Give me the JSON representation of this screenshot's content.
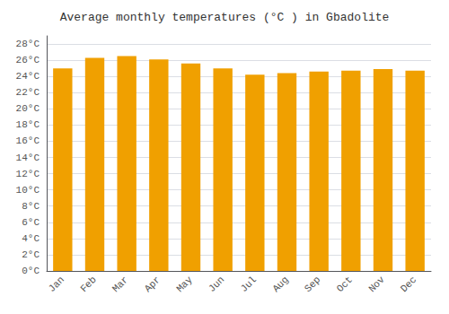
{
  "chart_data": {
    "type": "bar",
    "title": "Average monthly temperatures (°C ) in Gbadolite",
    "categories": [
      "Jan",
      "Feb",
      "Mar",
      "Apr",
      "May",
      "Jun",
      "Jul",
      "Aug",
      "Sep",
      "Oct",
      "Nov",
      "Dec"
    ],
    "values": [
      25.0,
      26.3,
      26.5,
      26.1,
      25.6,
      25.0,
      24.2,
      24.4,
      24.6,
      24.7,
      24.9,
      24.7
    ],
    "color": "#F0A000",
    "ylim": [
      0,
      29
    ],
    "yticks": [
      {
        "value": 0,
        "label": "0°C"
      },
      {
        "value": 2,
        "label": "2°C"
      },
      {
        "value": 4,
        "label": "4°C"
      },
      {
        "value": 6,
        "label": "6°C"
      },
      {
        "value": 8,
        "label": "8°C"
      },
      {
        "value": 10,
        "label": "10°C"
      },
      {
        "value": 12,
        "label": "12°C"
      },
      {
        "value": 14,
        "label": "14°C"
      },
      {
        "value": 16,
        "label": "16°C"
      },
      {
        "value": 18,
        "label": "18°C"
      },
      {
        "value": 20,
        "label": "20°C"
      },
      {
        "value": 22,
        "label": "22°C"
      },
      {
        "value": 24,
        "label": "24°C"
      },
      {
        "value": 26,
        "label": "26°C"
      },
      {
        "value": 28,
        "label": "28°C"
      }
    ],
    "grid": true
  }
}
